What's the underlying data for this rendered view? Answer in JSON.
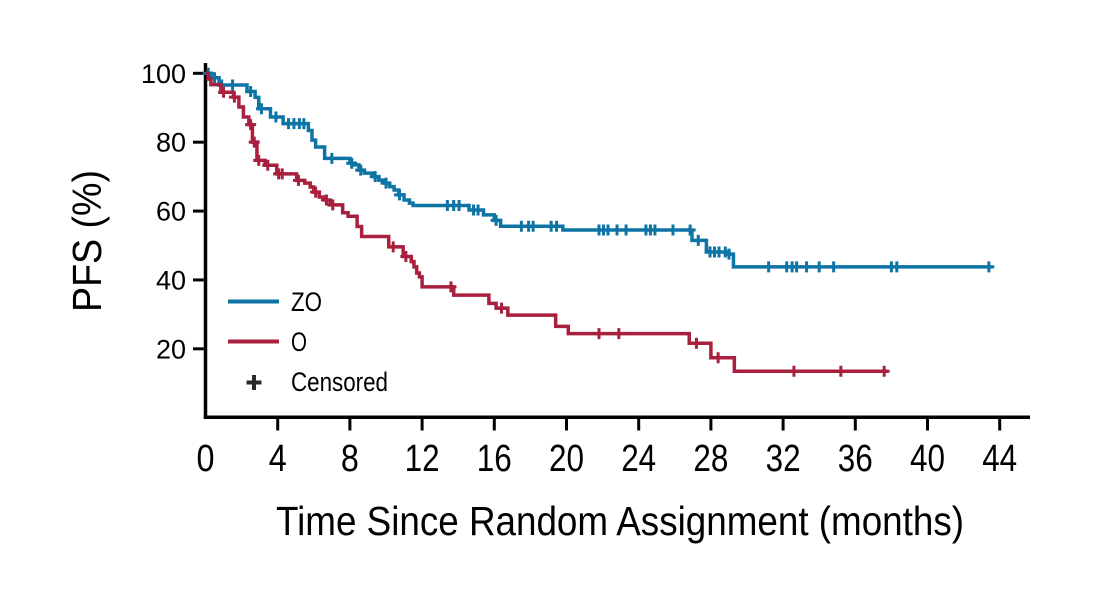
{
  "figure": {
    "legend": {
      "censored_label": "Censored",
      "censored_marker": "+",
      "censored_marker_color": "#2B2A2A"
    },
    "axis_color": "#000000",
    "background_color": "#ffffff"
  },
  "chart_data": {
    "type": "line",
    "subtype": "kaplan-meier-step",
    "xlabel": "Time Since Random Assignment (months)",
    "ylabel": "PFS (%)",
    "xlim": [
      0,
      44
    ],
    "ylim": [
      0,
      100
    ],
    "xticks": [
      0,
      4,
      8,
      12,
      16,
      20,
      24,
      28,
      32,
      36,
      40,
      44
    ],
    "yticks": [
      20,
      40,
      60,
      80,
      100
    ],
    "grid": false,
    "legend_position": "lower-left-inside",
    "series": [
      {
        "name": "ZO",
        "color": "#0E74A6",
        "end_month": 43.6,
        "steps": [
          [
            0,
            100
          ],
          [
            0.3,
            98.7
          ],
          [
            0.75,
            96.6
          ],
          [
            2.3,
            94.7
          ],
          [
            2.75,
            93
          ],
          [
            2.95,
            89.7
          ],
          [
            3.6,
            87.3
          ],
          [
            4.3,
            85.4
          ],
          [
            5.7,
            83.4
          ],
          [
            5.9,
            80.6
          ],
          [
            6.1,
            78.6
          ],
          [
            6.6,
            75.3
          ],
          [
            8.0,
            73.9
          ],
          [
            8.25,
            73.4
          ],
          [
            8.5,
            71.9
          ],
          [
            8.8,
            71
          ],
          [
            9.3,
            70
          ],
          [
            9.6,
            69
          ],
          [
            9.9,
            68.1
          ],
          [
            10.2,
            67.1
          ],
          [
            10.45,
            66.1
          ],
          [
            10.7,
            64.7
          ],
          [
            11.0,
            63.2
          ],
          [
            11.3,
            62.3
          ],
          [
            11.5,
            61.6
          ],
          [
            14.6,
            60.3
          ],
          [
            15.4,
            58.9
          ],
          [
            16.0,
            57.3
          ],
          [
            16.35,
            55.6
          ],
          [
            19.8,
            54.5
          ],
          [
            26.95,
            51.5
          ],
          [
            27.75,
            48.1
          ],
          [
            28.9,
            47.5
          ],
          [
            29.25,
            43.8
          ]
        ],
        "censors": [
          [
            0.15,
            100
          ],
          [
            0.5,
            98.7
          ],
          [
            0.9,
            96.6
          ],
          [
            1.5,
            96.6
          ],
          [
            2.5,
            94.7
          ],
          [
            3.1,
            89.7
          ],
          [
            3.9,
            87.3
          ],
          [
            4.6,
            85.4
          ],
          [
            4.9,
            85.4
          ],
          [
            5.2,
            85.4
          ],
          [
            5.45,
            85.4
          ],
          [
            7.0,
            75.3
          ],
          [
            8.1,
            73.9
          ],
          [
            8.6,
            71.9
          ],
          [
            9.4,
            70
          ],
          [
            10.0,
            68.1
          ],
          [
            10.75,
            64.7
          ],
          [
            13.4,
            61.6
          ],
          [
            13.75,
            61.6
          ],
          [
            14.05,
            61.6
          ],
          [
            14.85,
            60.3
          ],
          [
            15.1,
            60.3
          ],
          [
            16.1,
            57.3
          ],
          [
            17.5,
            55.6
          ],
          [
            17.9,
            55.6
          ],
          [
            18.15,
            55.6
          ],
          [
            19.15,
            55.6
          ],
          [
            19.45,
            55.6
          ],
          [
            21.8,
            54.5
          ],
          [
            22.05,
            54.5
          ],
          [
            22.3,
            54.5
          ],
          [
            22.8,
            54.5
          ],
          [
            23.3,
            54.5
          ],
          [
            24.4,
            54.5
          ],
          [
            24.65,
            54.5
          ],
          [
            24.9,
            54.5
          ],
          [
            25.9,
            54.5
          ],
          [
            26.85,
            54.5
          ],
          [
            27.3,
            51.5
          ],
          [
            27.95,
            48.1
          ],
          [
            28.2,
            48.1
          ],
          [
            28.45,
            48.1
          ],
          [
            28.8,
            48.1
          ],
          [
            29.0,
            47.5
          ],
          [
            31.2,
            43.8
          ],
          [
            32.2,
            43.8
          ],
          [
            32.5,
            43.8
          ],
          [
            32.75,
            43.8
          ],
          [
            33.3,
            43.8
          ],
          [
            34.0,
            43.8
          ],
          [
            34.8,
            43.8
          ],
          [
            38.0,
            43.8
          ],
          [
            38.3,
            43.8
          ],
          [
            43.4,
            43.8
          ]
        ]
      },
      {
        "name": "O",
        "color": "#A8203D",
        "end_month": 37.8,
        "steps": [
          [
            0,
            100
          ],
          [
            0.15,
            98.3
          ],
          [
            0.3,
            96.7
          ],
          [
            0.85,
            94.5
          ],
          [
            1.55,
            93.1
          ],
          [
            1.85,
            90.2
          ],
          [
            2.1,
            87.3
          ],
          [
            2.4,
            85.1
          ],
          [
            2.6,
            80
          ],
          [
            2.85,
            74.7
          ],
          [
            3.3,
            73.3
          ],
          [
            3.95,
            70.8
          ],
          [
            5.05,
            68.9
          ],
          [
            5.5,
            68.1
          ],
          [
            5.8,
            67
          ],
          [
            6.0,
            65.5
          ],
          [
            6.3,
            64.1
          ],
          [
            6.6,
            63.2
          ],
          [
            6.9,
            61.8
          ],
          [
            7.6,
            59.5
          ],
          [
            7.9,
            58.5
          ],
          [
            8.4,
            55.5
          ],
          [
            8.65,
            52.6
          ],
          [
            10.15,
            49.6
          ],
          [
            10.95,
            46.8
          ],
          [
            11.4,
            45.3
          ],
          [
            11.55,
            43.8
          ],
          [
            11.7,
            42
          ],
          [
            11.85,
            40.9
          ],
          [
            12.0,
            38
          ],
          [
            13.75,
            35.6
          ],
          [
            15.7,
            33.2
          ],
          [
            16.1,
            31.8
          ],
          [
            16.75,
            29.8
          ],
          [
            19.4,
            26.5
          ],
          [
            20.1,
            24.4
          ],
          [
            26.8,
            21.6
          ],
          [
            28.0,
            17.4
          ],
          [
            29.3,
            13.5
          ]
        ],
        "censors": [
          [
            1.0,
            94.5
          ],
          [
            1.6,
            93.1
          ],
          [
            2.5,
            85.1
          ],
          [
            2.7,
            80
          ],
          [
            2.95,
            74.7
          ],
          [
            3.45,
            73.3
          ],
          [
            4.05,
            70.8
          ],
          [
            4.25,
            70.8
          ],
          [
            5.15,
            68.9
          ],
          [
            6.1,
            65.5
          ],
          [
            6.7,
            63.2
          ],
          [
            7.05,
            61.8
          ],
          [
            10.4,
            49.6
          ],
          [
            11.1,
            46.8
          ],
          [
            13.6,
            38
          ],
          [
            16.4,
            31.8
          ],
          [
            21.8,
            24.4
          ],
          [
            22.9,
            24.4
          ],
          [
            27.2,
            21.6
          ],
          [
            28.4,
            17.4
          ],
          [
            32.6,
            13.5
          ],
          [
            35.2,
            13.5
          ],
          [
            37.6,
            13.5
          ]
        ]
      }
    ]
  }
}
